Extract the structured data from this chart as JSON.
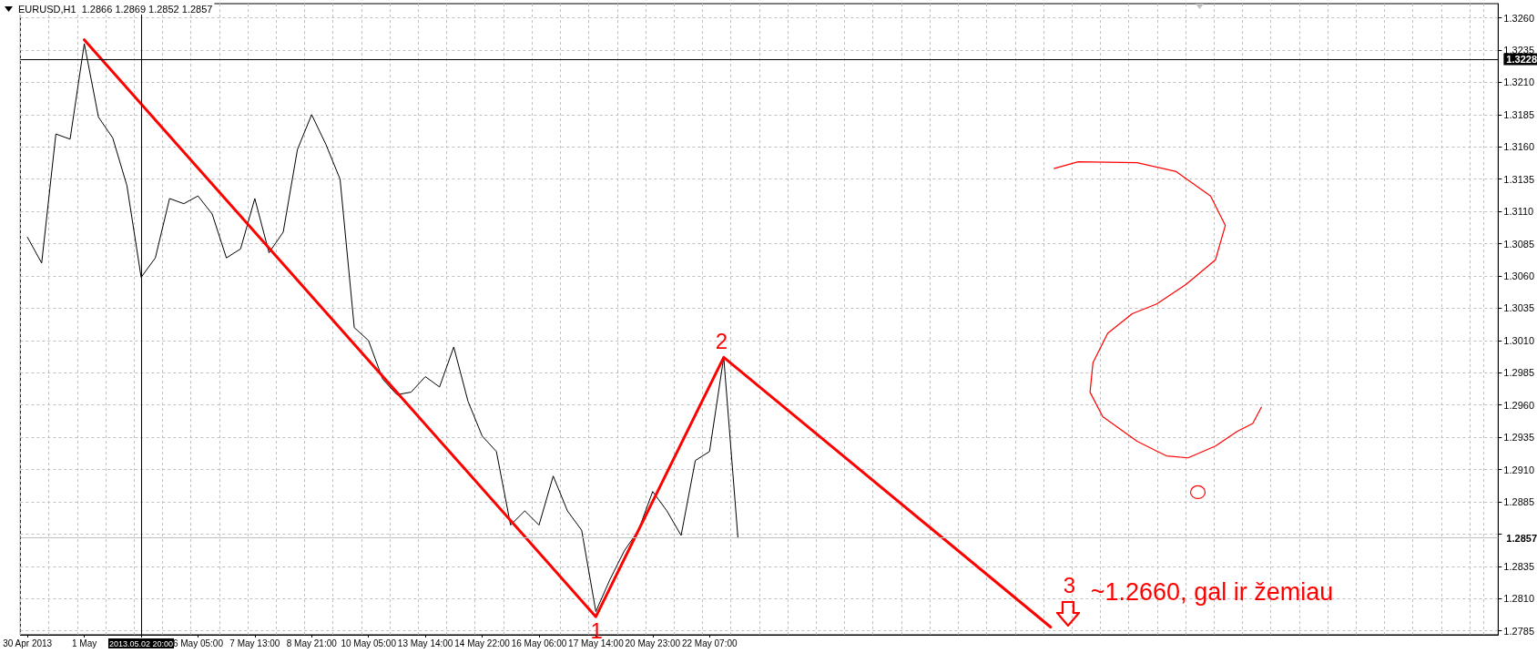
{
  "chart_data": {
    "type": "line",
    "title": "EURUSD,H1  1.2866 1.2869 1.2852 1.2857",
    "categories": [
      "30 Apr 2013",
      null,
      null,
      null,
      "1 May",
      null,
      null,
      null,
      "2013.05.02 20:00",
      null,
      null,
      null,
      "6 May 05:00",
      null,
      null,
      null,
      "7 May 13:00",
      null,
      null,
      null,
      "8 May 21:00",
      null,
      null,
      null,
      "10 May 05:00",
      null,
      null,
      null,
      "13 May 14:00",
      null,
      null,
      null,
      "14 May 22:00",
      null,
      null,
      null,
      "16 May 06:00",
      null,
      null,
      null,
      "17 May 14:00",
      null,
      null,
      null,
      "20 May 23:00",
      null,
      null,
      null,
      "22 May 07:00",
      null,
      null,
      null,
      null,
      null,
      null,
      null,
      null,
      null,
      null,
      null,
      null,
      null,
      null,
      null,
      null,
      null,
      null,
      null,
      null,
      null,
      null,
      null,
      null,
      null,
      null,
      null,
      null,
      null,
      null,
      null,
      null,
      null,
      null,
      null,
      null,
      null,
      null,
      null,
      null,
      null,
      null,
      null,
      null,
      null,
      null,
      null,
      null,
      null,
      null,
      null,
      null,
      null,
      null,
      null
    ],
    "series": [
      {
        "color": "#000000",
        "values": [
          1.309,
          1.307,
          1.317,
          1.3166,
          1.324,
          1.3183,
          1.3167,
          1.313,
          1.3059,
          1.3074,
          1.312,
          1.3116,
          1.3122,
          1.3108,
          1.3074,
          1.3081,
          1.312,
          1.3078,
          1.3094,
          1.3158,
          1.3185,
          1.3162,
          1.3135,
          1.302,
          1.301,
          1.298,
          1.2968,
          1.297,
          1.2982,
          1.2974,
          1.3005,
          1.2963,
          1.2936,
          1.2924,
          1.2867,
          1.2878,
          1.2867,
          1.2905,
          1.2878,
          1.2863,
          1.28,
          1.2825,
          1.2847,
          1.2863,
          1.2893,
          1.2878,
          1.2859,
          1.2917,
          1.2924,
          1.2997,
          1.2857,
          null,
          null,
          null,
          null,
          null,
          null,
          null,
          null,
          null,
          null,
          null,
          null,
          null,
          null,
          null,
          null,
          null,
          null,
          null,
          null,
          null,
          null,
          null,
          null,
          null,
          null,
          null,
          null,
          null,
          null,
          null,
          null,
          null,
          null,
          null,
          null,
          null,
          null,
          null,
          null,
          null,
          null,
          null,
          null,
          null,
          null,
          null,
          null,
          null,
          null,
          null,
          null,
          null
        ]
      },
      {
        "color": "#ff0000",
        "values": [
          null,
          null,
          null,
          null,
          1.3243,
          null,
          null,
          null,
          null,
          null,
          null,
          null,
          null,
          null,
          null,
          null,
          null,
          null,
          null,
          null,
          null,
          null,
          null,
          null,
          null,
          null,
          null,
          null,
          null,
          null,
          null,
          null,
          null,
          null,
          null,
          null,
          null,
          null,
          null,
          null,
          1.2796,
          null,
          null,
          null,
          null,
          null,
          null,
          null,
          null,
          1.2997,
          null,
          null,
          null,
          null,
          null,
          null,
          null,
          null,
          null,
          null,
          null,
          null,
          null,
          null,
          null,
          null,
          null,
          null,
          null,
          null,
          null,
          null,
          1.2788,
          null,
          null,
          null,
          null,
          null,
          null,
          null,
          null,
          null,
          null,
          null,
          null,
          null,
          null,
          null,
          null,
          null,
          null,
          null,
          null,
          null,
          null,
          null,
          null,
          null,
          null,
          null,
          null,
          null,
          null,
          null
        ]
      }
    ],
    "ylim": [
      1.2782,
      1.3271
    ],
    "yticks": [
      1.2785,
      {
        "value": 1.281,
        "label": "1.2810"
      },
      1.2835,
      {
        "value": 1.286,
        "label": null
      },
      1.2885,
      {
        "value": 1.291,
        "label": "1.2910"
      },
      1.2935,
      {
        "value": 1.296,
        "label": "1.2960"
      },
      1.2985,
      {
        "value": 1.301,
        "label": "1.3010"
      },
      1.3035,
      {
        "value": 1.306,
        "label": "1.3060"
      },
      1.3085,
      {
        "value": 1.311,
        "label": "1.3110"
      },
      1.3135,
      {
        "value": 1.316,
        "label": "1.3160"
      },
      1.3185,
      {
        "value": 1.321,
        "label": "1.3210"
      },
      1.3235,
      {
        "value": 1.326,
        "label": "1.3260"
      }
    ],
    "grid": true,
    "marker": "none",
    "line_style": "solid",
    "ref_lines": [
      {
        "axis": "y",
        "value": 1.3228,
        "label": "1.3228",
        "color": "#000000"
      },
      {
        "axis": "y",
        "value": 1.2857,
        "label": "1.2857",
        "color": "#c0c0c0"
      },
      {
        "axis": "x",
        "value": "2013.05.02 20:00",
        "color": "#000000"
      }
    ],
    "annotations": [
      "1",
      "2",
      "3",
      "~1.2660, gal ir žemiau"
    ]
  }
}
